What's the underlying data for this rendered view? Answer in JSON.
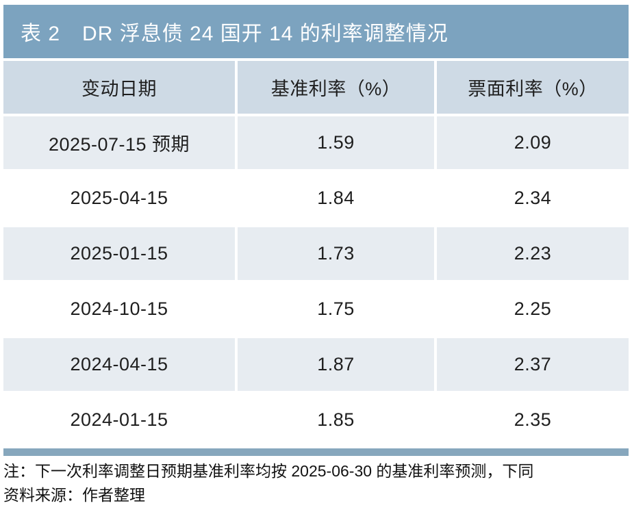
{
  "table": {
    "label": "表 2",
    "title": "DR 浮息债 24 国开 14 的利率调整情况",
    "headers": [
      "变动日期",
      "基准利率（%）",
      "票面利率（%）"
    ],
    "rows": [
      {
        "date": "2025-07-15 预期",
        "benchmark": "1.59",
        "coupon": "2.09"
      },
      {
        "date": "2025-04-15",
        "benchmark": "1.84",
        "coupon": "2.34"
      },
      {
        "date": "2025-01-15",
        "benchmark": "1.73",
        "coupon": "2.23"
      },
      {
        "date": "2024-10-15",
        "benchmark": "1.75",
        "coupon": "2.25"
      },
      {
        "date": "2024-04-15",
        "benchmark": "1.87",
        "coupon": "2.37"
      },
      {
        "date": "2024-01-15",
        "benchmark": "1.85",
        "coupon": "2.35"
      }
    ],
    "note": "注：下一次利率调整日预期基准利率均按 2025-06-30 的基准利率预测，下同",
    "source": "资料来源：作者整理"
  },
  "chart_data": {
    "type": "table",
    "title": "表 2 DR 浮息债 24 国开 14 的利率调整情况",
    "columns": [
      "变动日期",
      "基准利率（%）",
      "票面利率（%）"
    ],
    "rows": [
      [
        "2025-07-15 预期",
        1.59,
        2.09
      ],
      [
        "2025-04-15",
        1.84,
        2.34
      ],
      [
        "2025-01-15",
        1.73,
        2.23
      ],
      [
        "2024-10-15",
        1.75,
        2.25
      ],
      [
        "2024-04-15",
        1.87,
        2.37
      ],
      [
        "2024-01-15",
        1.85,
        2.35
      ]
    ]
  },
  "colors": {
    "title_bar": "#7ca3bf",
    "header_row": "#cedae5",
    "shaded_row": "#e7ecf1",
    "bottom_rule": "#87a7bd",
    "title_text": "#ffffff",
    "body_text": "#1e1e1e"
  }
}
